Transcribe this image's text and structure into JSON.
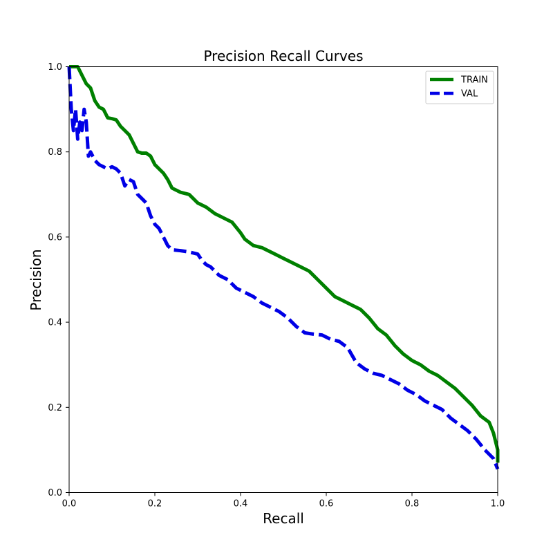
{
  "chart_data": {
    "type": "line",
    "title": "Precision Recall Curves",
    "xlabel": "Recall",
    "ylabel": "Precision",
    "xlim": [
      0,
      1
    ],
    "ylim": [
      0,
      1
    ],
    "x_ticks": [
      "0.0",
      "0.2",
      "0.4",
      "0.6",
      "0.8",
      "1.0"
    ],
    "y_ticks": [
      "0.0",
      "0.2",
      "0.4",
      "0.6",
      "0.8",
      "1.0"
    ],
    "grid": false,
    "legend_position": "top-right",
    "series": [
      {
        "name": "TRAIN",
        "color": "#008000",
        "style": "solid",
        "points": [
          [
            0.0,
            1.0
          ],
          [
            0.02,
            1.0
          ],
          [
            0.03,
            0.98
          ],
          [
            0.04,
            0.96
          ],
          [
            0.05,
            0.95
          ],
          [
            0.06,
            0.92
          ],
          [
            0.07,
            0.905
          ],
          [
            0.08,
            0.9
          ],
          [
            0.09,
            0.88
          ],
          [
            0.1,
            0.878
          ],
          [
            0.11,
            0.875
          ],
          [
            0.12,
            0.86
          ],
          [
            0.13,
            0.85
          ],
          [
            0.14,
            0.84
          ],
          [
            0.15,
            0.82
          ],
          [
            0.16,
            0.8
          ],
          [
            0.17,
            0.797
          ],
          [
            0.18,
            0.797
          ],
          [
            0.19,
            0.79
          ],
          [
            0.2,
            0.77
          ],
          [
            0.22,
            0.75
          ],
          [
            0.23,
            0.735
          ],
          [
            0.24,
            0.715
          ],
          [
            0.25,
            0.71
          ],
          [
            0.26,
            0.705
          ],
          [
            0.28,
            0.7
          ],
          [
            0.29,
            0.69
          ],
          [
            0.3,
            0.68
          ],
          [
            0.32,
            0.67
          ],
          [
            0.34,
            0.655
          ],
          [
            0.36,
            0.645
          ],
          [
            0.38,
            0.635
          ],
          [
            0.4,
            0.61
          ],
          [
            0.41,
            0.595
          ],
          [
            0.43,
            0.58
          ],
          [
            0.45,
            0.575
          ],
          [
            0.48,
            0.56
          ],
          [
            0.5,
            0.55
          ],
          [
            0.52,
            0.54
          ],
          [
            0.54,
            0.53
          ],
          [
            0.56,
            0.52
          ],
          [
            0.58,
            0.5
          ],
          [
            0.6,
            0.48
          ],
          [
            0.62,
            0.46
          ],
          [
            0.64,
            0.45
          ],
          [
            0.66,
            0.44
          ],
          [
            0.68,
            0.43
          ],
          [
            0.7,
            0.41
          ],
          [
            0.72,
            0.385
          ],
          [
            0.74,
            0.37
          ],
          [
            0.76,
            0.345
          ],
          [
            0.78,
            0.325
          ],
          [
            0.8,
            0.31
          ],
          [
            0.82,
            0.3
          ],
          [
            0.84,
            0.285
          ],
          [
            0.86,
            0.275
          ],
          [
            0.88,
            0.26
          ],
          [
            0.9,
            0.245
          ],
          [
            0.92,
            0.225
          ],
          [
            0.94,
            0.205
          ],
          [
            0.96,
            0.18
          ],
          [
            0.98,
            0.165
          ],
          [
            0.99,
            0.14
          ],
          [
            1.0,
            0.1
          ],
          [
            1.0,
            0.07
          ]
        ]
      },
      {
        "name": "VAL",
        "color": "#0000e6",
        "style": "dashed",
        "points": [
          [
            0.0,
            1.0
          ],
          [
            0.005,
            0.9
          ],
          [
            0.01,
            0.85
          ],
          [
            0.015,
            0.9
          ],
          [
            0.02,
            0.83
          ],
          [
            0.025,
            0.87
          ],
          [
            0.03,
            0.85
          ],
          [
            0.035,
            0.9
          ],
          [
            0.04,
            0.87
          ],
          [
            0.045,
            0.79
          ],
          [
            0.05,
            0.8
          ],
          [
            0.06,
            0.78
          ],
          [
            0.07,
            0.77
          ],
          [
            0.08,
            0.765
          ],
          [
            0.09,
            0.76
          ],
          [
            0.1,
            0.765
          ],
          [
            0.11,
            0.76
          ],
          [
            0.12,
            0.75
          ],
          [
            0.13,
            0.72
          ],
          [
            0.14,
            0.735
          ],
          [
            0.15,
            0.73
          ],
          [
            0.16,
            0.7
          ],
          [
            0.17,
            0.69
          ],
          [
            0.18,
            0.68
          ],
          [
            0.19,
            0.65
          ],
          [
            0.2,
            0.63
          ],
          [
            0.21,
            0.62
          ],
          [
            0.22,
            0.6
          ],
          [
            0.23,
            0.58
          ],
          [
            0.24,
            0.57
          ],
          [
            0.26,
            0.568
          ],
          [
            0.28,
            0.565
          ],
          [
            0.3,
            0.56
          ],
          [
            0.31,
            0.545
          ],
          [
            0.32,
            0.535
          ],
          [
            0.33,
            0.53
          ],
          [
            0.35,
            0.51
          ],
          [
            0.37,
            0.5
          ],
          [
            0.39,
            0.48
          ],
          [
            0.41,
            0.47
          ],
          [
            0.43,
            0.46
          ],
          [
            0.45,
            0.445
          ],
          [
            0.47,
            0.435
          ],
          [
            0.49,
            0.425
          ],
          [
            0.51,
            0.41
          ],
          [
            0.53,
            0.39
          ],
          [
            0.55,
            0.375
          ],
          [
            0.57,
            0.372
          ],
          [
            0.59,
            0.37
          ],
          [
            0.61,
            0.36
          ],
          [
            0.63,
            0.355
          ],
          [
            0.65,
            0.34
          ],
          [
            0.67,
            0.305
          ],
          [
            0.69,
            0.29
          ],
          [
            0.71,
            0.28
          ],
          [
            0.73,
            0.275
          ],
          [
            0.75,
            0.265
          ],
          [
            0.77,
            0.255
          ],
          [
            0.79,
            0.24
          ],
          [
            0.81,
            0.23
          ],
          [
            0.83,
            0.215
          ],
          [
            0.85,
            0.205
          ],
          [
            0.87,
            0.195
          ],
          [
            0.89,
            0.175
          ],
          [
            0.91,
            0.16
          ],
          [
            0.93,
            0.145
          ],
          [
            0.95,
            0.125
          ],
          [
            0.97,
            0.1
          ],
          [
            0.99,
            0.08
          ],
          [
            1.0,
            0.055
          ]
        ]
      }
    ]
  }
}
